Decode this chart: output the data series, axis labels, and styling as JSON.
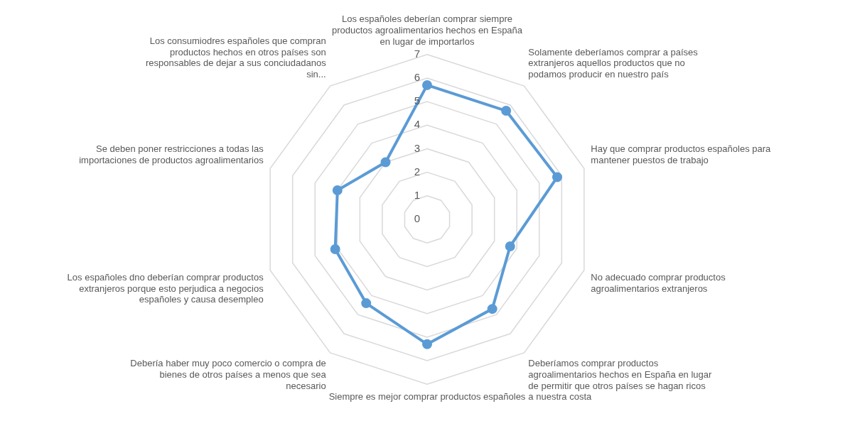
{
  "chart_data": {
    "type": "radar",
    "categories": [
      "Los españoles deberían comprar siempre productos agroalimentarios hechos en España en lugar de importarlos",
      "Solamente deberíamos comprar a países extranjeros aquellos productos que no podamos producir en nuestro país",
      "Hay que comprar productos españoles para mantener puestos de trabajo",
      "No adecuado comprar productos agroalimentarios extranjeros",
      "Deberíamos comprar productos agroalimentarios hechos en España en lugar de permitir que otros países se hagan ricos a nuestra costa",
      "Siempre es mejor comprar productos españoles",
      "Debería haber muy poco comercio o compra de bienes de otros países a menos que sea necesario",
      "Los españoles dno deberían comprar productos extranjeros porque esto perjudica a negocios españoles y causa desempleo",
      "Se deben poner restricciones a todas las importaciones de productos agroalimentarios",
      "Los consumiodres españoles que compran productos hechos en otros países son responsables de dejar a sus conciudadanos sin..."
    ],
    "series": [
      {
        "color": "#5b9bd5",
        "values": [
          5.7,
          5.7,
          5.8,
          3.7,
          4.7,
          5.3,
          4.4,
          4.1,
          4.0,
          3.0
        ]
      }
    ],
    "ylim": [
      0,
      7
    ],
    "yticks": [
      0,
      1,
      2,
      3,
      4,
      5,
      6,
      7
    ],
    "grid": true,
    "legend": false,
    "marker": "circle",
    "line_style": "solid"
  }
}
